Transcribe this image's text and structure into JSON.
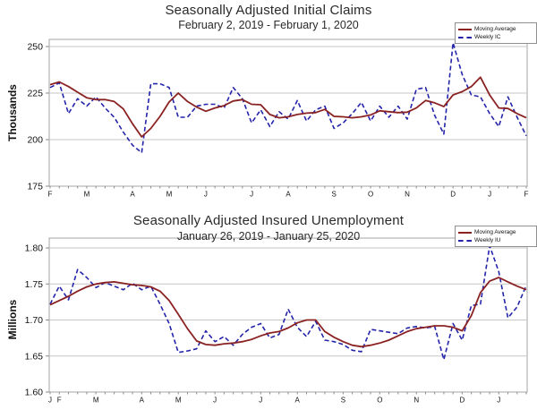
{
  "colors": {
    "moving_average": "#8b2222",
    "weekly": "#2424aa",
    "grid": "#c6c6c6",
    "plot_border": "#a6a6a6",
    "tick": "#8a8a8a",
    "text": "#111111"
  },
  "chart_data": [
    {
      "type": "line",
      "title": "Seasonally Adjusted Initial Claims",
      "subtitle": "February 2, 2019 - February 1, 2020",
      "y_unit_label": "Thousands",
      "ylim": [
        175,
        253.85
      ],
      "grid": true,
      "legend_position": "top-right",
      "legend": [
        {
          "label": "Moving Average",
          "style": "solid"
        },
        {
          "label": "Weekly IC",
          "style": "dashed"
        }
      ],
      "y_ticks": [
        {
          "label": "250",
          "value": 250
        },
        {
          "label": "225",
          "value": 225
        },
        {
          "label": "200",
          "value": 200
        },
        {
          "label": "175",
          "value": 175
        }
      ],
      "x_axis": {
        "weeks": 53,
        "month_labels": [
          {
            "label": "F",
            "week": 0
          },
          {
            "label": "M",
            "week": 4
          },
          {
            "label": "A",
            "week": 9
          },
          {
            "label": "M",
            "week": 13
          },
          {
            "label": "J",
            "week": 17
          },
          {
            "label": "J",
            "week": 22
          },
          {
            "label": "A",
            "week": 26
          },
          {
            "label": "S",
            "week": 31
          },
          {
            "label": "O",
            "week": 35
          },
          {
            "label": "N",
            "week": 39
          },
          {
            "label": "D",
            "week": 44
          },
          {
            "label": "J",
            "week": 48
          },
          {
            "label": "F",
            "week": 52
          }
        ]
      },
      "series": [
        {
          "name": "Weekly IC",
          "style": "dashed",
          "color_key": "weekly",
          "values": [
            228,
            230.5,
            214,
            222,
            218,
            223,
            217,
            212,
            204,
            197,
            193,
            230,
            230,
            228,
            212,
            212,
            218,
            219,
            219,
            217,
            228,
            222,
            209,
            216,
            207,
            215,
            211,
            221,
            210,
            216,
            218,
            206,
            209,
            214,
            220,
            210,
            218,
            212,
            218,
            211,
            227,
            228,
            213,
            203,
            252,
            235,
            224,
            223,
            214,
            207,
            223,
            212,
            202
          ]
        },
        {
          "name": "Moving Average",
          "style": "solid",
          "color_key": "moving_average",
          "values": [
            229.5,
            231,
            228.5,
            225.5,
            222.5,
            221.5,
            221.5,
            220.5,
            216.5,
            208.5,
            201.5,
            206,
            212.5,
            220.25,
            225,
            220.5,
            217.5,
            215.25,
            217,
            218.25,
            220.75,
            221.5,
            219,
            218.75,
            213.5,
            211.75,
            212.25,
            213.5,
            214.25,
            214.5,
            216.25,
            212.5,
            212.25,
            211.75,
            212.25,
            213.25,
            215.5,
            215,
            214.5,
            214.75,
            217,
            221,
            219.75,
            217.75,
            224,
            225.75,
            228.5,
            233.5,
            224,
            217,
            216.75,
            214,
            211.75
          ]
        }
      ]
    },
    {
      "type": "line",
      "title": "Seasonally Adjusted Insured Unemployment",
      "subtitle": "January 26, 2019 - January 25, 2020",
      "y_unit_label": "Millions",
      "ylim": [
        1.6,
        1.8137
      ],
      "grid": true,
      "legend_position": "top-right",
      "legend": [
        {
          "label": "Moving Average",
          "style": "solid"
        },
        {
          "label": "Weekly IU",
          "style": "dashed"
        }
      ],
      "y_ticks": [
        {
          "label": "1.80",
          "value": 1.8
        },
        {
          "label": "1.75",
          "value": 1.75
        },
        {
          "label": "1.70",
          "value": 1.7
        },
        {
          "label": "1.65",
          "value": 1.65
        },
        {
          "label": "1.60",
          "value": 1.6
        }
      ],
      "x_axis": {
        "weeks": 53,
        "month_labels": [
          {
            "label": "J",
            "week": 0
          },
          {
            "label": "F",
            "week": 1
          },
          {
            "label": "M",
            "week": 5
          },
          {
            "label": "A",
            "week": 10
          },
          {
            "label": "M",
            "week": 14
          },
          {
            "label": "J",
            "week": 18
          },
          {
            "label": "J",
            "week": 23
          },
          {
            "label": "A",
            "week": 27
          },
          {
            "label": "S",
            "week": 32
          },
          {
            "label": "O",
            "week": 36
          },
          {
            "label": "N",
            "week": 40
          },
          {
            "label": "D",
            "week": 45
          },
          {
            "label": "J",
            "week": 49
          }
        ]
      },
      "series": [
        {
          "name": "Weekly IU",
          "style": "dashed",
          "color_key": "weekly",
          "values": [
            1.722,
            1.747,
            1.728,
            1.77,
            1.759,
            1.745,
            1.752,
            1.747,
            1.742,
            1.751,
            1.742,
            1.747,
            1.722,
            1.695,
            1.655,
            1.657,
            1.66,
            1.685,
            1.67,
            1.677,
            1.665,
            1.68,
            1.69,
            1.695,
            1.675,
            1.68,
            1.715,
            1.69,
            1.677,
            1.698,
            1.672,
            1.67,
            1.666,
            1.658,
            1.656,
            1.687,
            1.685,
            1.683,
            1.681,
            1.689,
            1.691,
            1.689,
            1.691,
            1.645,
            1.695,
            1.672,
            1.72,
            1.722,
            1.803,
            1.767,
            1.703,
            1.718,
            1.748
          ]
        },
        {
          "name": "Moving Average",
          "style": "solid",
          "color_key": "moving_average",
          "values": [
            1.721,
            1.727,
            1.733,
            1.74,
            1.746,
            1.75,
            1.752,
            1.753,
            1.751,
            1.749,
            1.748,
            1.746,
            1.74,
            1.727,
            1.708,
            1.688,
            1.671,
            1.666,
            1.665,
            1.667,
            1.668,
            1.67,
            1.673,
            1.678,
            1.682,
            1.684,
            1.689,
            1.696,
            1.7,
            1.7,
            1.684,
            1.676,
            1.67,
            1.665,
            1.663,
            1.665,
            1.668,
            1.672,
            1.678,
            1.684,
            1.688,
            1.69,
            1.692,
            1.692,
            1.69,
            1.685,
            1.706,
            1.738,
            1.754,
            1.759,
            1.753,
            1.747,
            1.742
          ]
        }
      ]
    }
  ]
}
